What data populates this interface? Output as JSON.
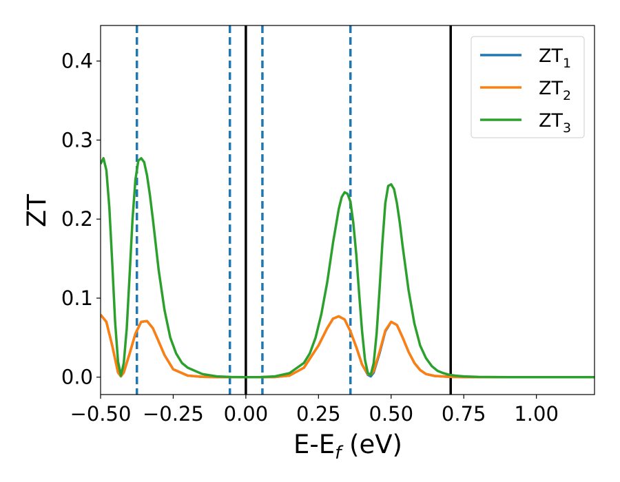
{
  "chart_data": {
    "type": "line",
    "xlabel": "E-E",
    "xlabel_sub": "f",
    "xlabel_unit": " (eV)",
    "ylabel": "ZT",
    "xlim": [
      -0.5,
      1.2
    ],
    "ylim": [
      -0.022,
      0.445
    ],
    "x_ticks": [
      -0.5,
      -0.25,
      0.0,
      0.25,
      0.5,
      0.75,
      1.0
    ],
    "x_tick_labels": [
      "−0.50",
      "−0.25",
      "0.00",
      "0.25",
      "0.50",
      "0.75",
      "1.00"
    ],
    "y_ticks": [
      0.0,
      0.1,
      0.2,
      0.3,
      0.4
    ],
    "y_tick_labels": [
      "0.0",
      "0.1",
      "0.2",
      "0.3",
      "0.4"
    ],
    "grid": false,
    "legend_position": "top-right",
    "vlines_solid": [
      0.0,
      0.705
    ],
    "vlines_dashed": [
      -0.375,
      -0.055,
      0.057,
      0.36
    ],
    "series": [
      {
        "name": "ZT",
        "name_sub": "1",
        "color": "#1f77b4",
        "x": [
          -0.5,
          -0.48,
          -0.46,
          -0.44,
          -0.43,
          -0.42,
          -0.4,
          -0.38,
          -0.36,
          -0.34,
          -0.32,
          -0.3,
          -0.28,
          -0.25,
          -0.2,
          -0.15,
          -0.1,
          -0.05,
          0.0,
          0.05,
          0.1,
          0.15,
          0.2,
          0.25,
          0.28,
          0.3,
          0.32,
          0.34,
          0.36,
          0.38,
          0.4,
          0.42,
          0.43,
          0.44,
          0.46,
          0.48,
          0.5,
          0.52,
          0.54,
          0.56,
          0.58,
          0.6,
          0.62,
          0.65,
          0.7,
          0.75,
          0.8,
          0.9,
          1.0,
          1.1,
          1.2
        ],
        "values": [
          0.079,
          0.07,
          0.04,
          0.006,
          0.001,
          0.006,
          0.03,
          0.055,
          0.07,
          0.071,
          0.062,
          0.045,
          0.028,
          0.01,
          0.002,
          0.0005,
          0.0001,
          0.0,
          0.0,
          0.0,
          0.0002,
          0.002,
          0.012,
          0.04,
          0.062,
          0.074,
          0.077,
          0.073,
          0.058,
          0.038,
          0.016,
          0.003,
          0.001,
          0.006,
          0.03,
          0.058,
          0.07,
          0.066,
          0.05,
          0.032,
          0.018,
          0.009,
          0.004,
          0.0015,
          0.0004,
          0.0001,
          0.0,
          0.0,
          0.0,
          0.0,
          0.0
        ]
      },
      {
        "name": "ZT",
        "name_sub": "2",
        "color": "#ff7f0e",
        "x": [
          -0.5,
          -0.48,
          -0.46,
          -0.44,
          -0.43,
          -0.42,
          -0.4,
          -0.38,
          -0.36,
          -0.34,
          -0.32,
          -0.3,
          -0.28,
          -0.25,
          -0.2,
          -0.15,
          -0.1,
          -0.05,
          0.0,
          0.05,
          0.1,
          0.15,
          0.2,
          0.25,
          0.28,
          0.3,
          0.32,
          0.34,
          0.36,
          0.38,
          0.4,
          0.42,
          0.43,
          0.44,
          0.46,
          0.48,
          0.5,
          0.52,
          0.54,
          0.56,
          0.58,
          0.6,
          0.62,
          0.65,
          0.7,
          0.75,
          0.8,
          0.9,
          1.0,
          1.1,
          1.2
        ],
        "values": [
          0.079,
          0.07,
          0.04,
          0.006,
          0.001,
          0.006,
          0.03,
          0.055,
          0.07,
          0.071,
          0.062,
          0.045,
          0.028,
          0.01,
          0.002,
          0.0005,
          0.0001,
          0.0,
          0.0,
          0.0,
          0.0002,
          0.002,
          0.012,
          0.04,
          0.062,
          0.074,
          0.077,
          0.073,
          0.058,
          0.038,
          0.016,
          0.004,
          0.003,
          0.008,
          0.032,
          0.059,
          0.07,
          0.066,
          0.05,
          0.032,
          0.018,
          0.009,
          0.004,
          0.0015,
          0.0004,
          0.0001,
          0.0,
          0.0,
          0.0,
          0.0,
          0.0
        ]
      },
      {
        "name": "ZT",
        "name_sub": "3",
        "color": "#2ca02c",
        "x": [
          -0.5,
          -0.49,
          -0.48,
          -0.47,
          -0.46,
          -0.45,
          -0.44,
          -0.43,
          -0.42,
          -0.41,
          -0.4,
          -0.39,
          -0.38,
          -0.37,
          -0.36,
          -0.35,
          -0.34,
          -0.33,
          -0.32,
          -0.3,
          -0.28,
          -0.26,
          -0.24,
          -0.22,
          -0.2,
          -0.15,
          -0.1,
          -0.05,
          0.0,
          0.05,
          0.1,
          0.15,
          0.2,
          0.22,
          0.24,
          0.26,
          0.28,
          0.3,
          0.32,
          0.33,
          0.34,
          0.35,
          0.36,
          0.37,
          0.38,
          0.39,
          0.4,
          0.41,
          0.42,
          0.43,
          0.44,
          0.45,
          0.46,
          0.47,
          0.48,
          0.49,
          0.5,
          0.51,
          0.52,
          0.53,
          0.54,
          0.56,
          0.58,
          0.6,
          0.62,
          0.64,
          0.66,
          0.68,
          0.7,
          0.72,
          0.75,
          0.8,
          0.9,
          1.0,
          1.1,
          1.2
        ],
        "values": [
          0.27,
          0.277,
          0.262,
          0.215,
          0.145,
          0.07,
          0.02,
          0.002,
          0.018,
          0.062,
          0.13,
          0.2,
          0.25,
          0.274,
          0.277,
          0.272,
          0.255,
          0.23,
          0.2,
          0.135,
          0.085,
          0.05,
          0.03,
          0.018,
          0.012,
          0.004,
          0.001,
          0.0002,
          0.0,
          0.0001,
          0.001,
          0.005,
          0.018,
          0.03,
          0.05,
          0.08,
          0.12,
          0.17,
          0.213,
          0.228,
          0.234,
          0.232,
          0.222,
          0.195,
          0.155,
          0.105,
          0.058,
          0.022,
          0.005,
          0.003,
          0.018,
          0.055,
          0.11,
          0.17,
          0.22,
          0.242,
          0.244,
          0.238,
          0.22,
          0.195,
          0.165,
          0.11,
          0.068,
          0.04,
          0.024,
          0.014,
          0.008,
          0.005,
          0.003,
          0.002,
          0.001,
          0.0003,
          0.0,
          0.0,
          0.0,
          0.0
        ]
      }
    ]
  }
}
